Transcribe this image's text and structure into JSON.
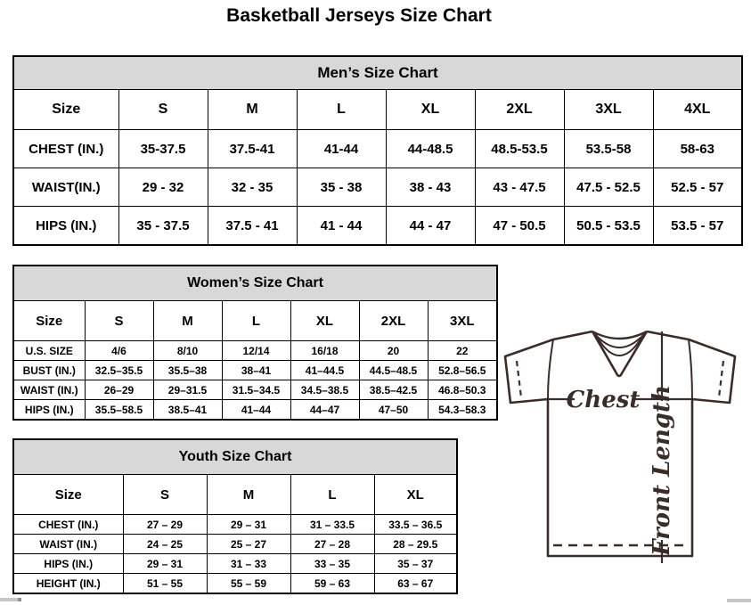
{
  "page_title": "Basketball Jerseys Size Chart",
  "colors": {
    "table_header_bg": "#d8d8d8",
    "table_border": "#000000",
    "jersey_outline": "#3a2d28"
  },
  "tables": {
    "men": {
      "title": "Men’s Size Chart",
      "columns": [
        "Size",
        "S",
        "M",
        "L",
        "XL",
        "2XL",
        "3XL",
        "4XL"
      ],
      "rows": [
        [
          "CHEST (IN.)",
          "35-37.5",
          "37.5-41",
          "41-44",
          "44-48.5",
          "48.5-53.5",
          "53.5-58",
          "58-63"
        ],
        [
          "WAIST(IN.)",
          "29 - 32",
          "32 - 35",
          "35 - 38",
          "38 - 43",
          "43 - 47.5",
          "47.5 - 52.5",
          "52.5 - 57"
        ],
        [
          "HIPS (IN.)",
          "35 - 37.5",
          "37.5 - 41",
          "41 - 44",
          "44 - 47",
          "47 - 50.5",
          "50.5 - 53.5",
          "53.5 - 57"
        ]
      ]
    },
    "women": {
      "title": "Women’s Size Chart",
      "columns": [
        "Size",
        "S",
        "M",
        "L",
        "XL",
        "2XL",
        "3XL"
      ],
      "rows": [
        [
          "U.S. SIZE",
          "4/6",
          "8/10",
          "12/14",
          "16/18",
          "20",
          "22"
        ],
        [
          "BUST (IN.)",
          "32.5–35.5",
          "35.5–38",
          "38–41",
          "41–44.5",
          "44.5–48.5",
          "52.8–56.5"
        ],
        [
          "WAIST (IN.)",
          "26–29",
          "29–31.5",
          "31.5–34.5",
          "34.5–38.5",
          "38.5–42.5",
          "46.8–50.3"
        ],
        [
          "HIPS (IN.)",
          "35.5–58.5",
          "38.5–41",
          "41–44",
          "44–47",
          "47–50",
          "54.3–58.3"
        ]
      ]
    },
    "youth": {
      "title": "Youth Size Chart",
      "columns": [
        "Size",
        "S",
        "M",
        "L",
        "XL"
      ],
      "rows": [
        [
          "CHEST (IN.)",
          "27 – 29",
          "29 – 31",
          "31 – 33.5",
          "33.5 – 36.5"
        ],
        [
          "WAIST (IN.)",
          "24 – 25",
          "25 – 27",
          "27 – 28",
          "28 – 29.5"
        ],
        [
          "HIPS (IN.)",
          "29 – 31",
          "31 – 33",
          "33 – 35",
          "35 – 37"
        ],
        [
          "HEIGHT (IN.)",
          "51 – 55",
          "55 – 59",
          "59 – 63",
          "63 – 67"
        ]
      ]
    }
  },
  "diagram": {
    "chest_label": "Chest",
    "front_length_label": "Front Length"
  }
}
